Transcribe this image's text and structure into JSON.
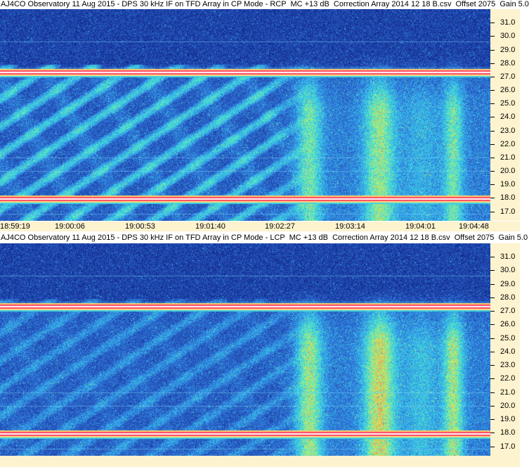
{
  "chart_data": [
    {
      "type": "heatmap",
      "title": "AJ4CO Observatory 11 Aug 2015 - DPS 30 kHz IF on TFD Array in CP Mode - RCP  MC +13 dB  Correction Array 2014 12 18 B.csv  Offset 2075  Gain 5.0",
      "x_tick_labels": [
        "18:59:19",
        "19:00:06",
        "19:00:53",
        "19:01:40",
        "19:02:27",
        "19:03:14",
        "19:04:01",
        "19:04:48"
      ],
      "y_tick_labels": [
        "31.0",
        "30.0",
        "29.0",
        "28.0",
        "27.0",
        "26.0",
        "25.0",
        "24.0",
        "23.0",
        "22.0",
        "21.0",
        "20.0",
        "19.0",
        "18.0",
        "17.0"
      ],
      "ylim": [
        16.3,
        32.0
      ],
      "colormap": [
        "#0a1a7a",
        "#1d3fa6",
        "#2e6fd4",
        "#35b8ee",
        "#4fe8c8",
        "#c8f060",
        "#ffb040",
        "#ff3050"
      ],
      "interference_lines_mhz": [
        27.3,
        17.9
      ],
      "emission_features": [
        "diagonal drifting bands 18:59 - 19:02",
        "vertical emission bands 19:02:27 - 19:04:48"
      ]
    },
    {
      "type": "heatmap",
      "title": "AJ4CO Observatory 11 Aug 2015 - DPS 30 kHz IF on TFD Array in CP Mode - LCP  MC +13 dB  Correction Array 2014 12 18 B.csv  Offset 2075  Gain 5.0",
      "y_tick_labels": [
        "31.0",
        "30.0",
        "29.0",
        "28.0",
        "27.0",
        "26.0",
        "25.0",
        "24.0",
        "23.0",
        "22.0",
        "21.0",
        "20.0",
        "19.0",
        "18.0",
        "17.0"
      ],
      "ylim": [
        16.3,
        32.0
      ],
      "interference_lines_mhz": [
        27.3,
        17.9
      ],
      "emission_features": [
        "faint diagonal bands 18:59 - 19:02",
        "strong vertical emission bands 19:02:27 - 19:04:48"
      ]
    }
  ]
}
